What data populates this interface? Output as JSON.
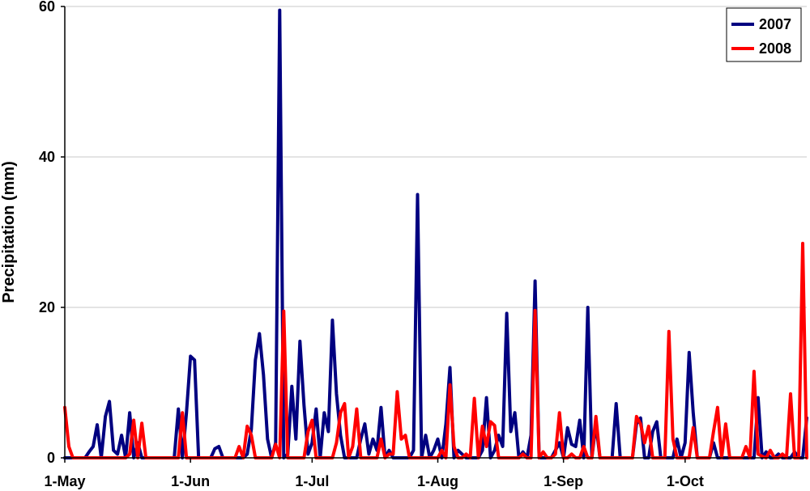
{
  "chart_data": {
    "type": "line",
    "title": "",
    "xlabel": "",
    "ylabel": "Precipitation (mm)",
    "ylim": [
      0,
      60
    ],
    "yticks": [
      0,
      20,
      40,
      60
    ],
    "xlim": [
      "2007-05-01",
      "2007-10-31"
    ],
    "xticks": [
      {
        "date": "2007-05-01",
        "label": "1-May"
      },
      {
        "date": "2007-06-01",
        "label": "1-Jun"
      },
      {
        "date": "2007-07-01",
        "label": "1-Jul"
      },
      {
        "date": "2007-08-01",
        "label": "1-Aug"
      },
      {
        "date": "2007-09-01",
        "label": "1-Sep"
      },
      {
        "date": "2007-10-01",
        "label": "1-Oct"
      }
    ],
    "grid": "horizontal",
    "legend": "top-right",
    "series": [
      {
        "name": "2007",
        "color": "#000080",
        "points": [
          [
            "2007-05-01",
            0
          ],
          [
            "2007-05-06",
            0
          ],
          [
            "2007-05-07",
            0.8
          ],
          [
            "2007-05-08",
            1.5
          ],
          [
            "2007-05-09",
            4.4
          ],
          [
            "2007-05-10",
            0
          ],
          [
            "2007-05-11",
            5.5
          ],
          [
            "2007-05-12",
            7.5
          ],
          [
            "2007-05-13",
            1
          ],
          [
            "2007-05-14",
            0.5
          ],
          [
            "2007-05-15",
            3
          ],
          [
            "2007-05-16",
            0
          ],
          [
            "2007-05-17",
            6
          ],
          [
            "2007-05-18",
            0
          ],
          [
            "2007-05-19",
            2
          ],
          [
            "2007-05-20",
            0
          ],
          [
            "2007-05-28",
            0
          ],
          [
            "2007-05-29",
            6.5
          ],
          [
            "2007-05-30",
            0
          ],
          [
            "2007-05-31",
            6
          ],
          [
            "2007-06-01",
            13.5
          ],
          [
            "2007-06-02",
            13
          ],
          [
            "2007-06-03",
            0
          ],
          [
            "2007-06-06",
            0
          ],
          [
            "2007-06-07",
            1.2
          ],
          [
            "2007-06-08",
            1.5
          ],
          [
            "2007-06-09",
            0
          ],
          [
            "2007-06-14",
            0
          ],
          [
            "2007-06-15",
            0.5
          ],
          [
            "2007-06-16",
            3.8
          ],
          [
            "2007-06-17",
            13
          ],
          [
            "2007-06-18",
            16.5
          ],
          [
            "2007-06-19",
            11
          ],
          [
            "2007-06-20",
            2.5
          ],
          [
            "2007-06-21",
            0
          ],
          [
            "2007-06-22",
            2
          ],
          [
            "2007-06-23",
            59.5
          ],
          [
            "2007-06-24",
            0
          ],
          [
            "2007-06-25",
            0.5
          ],
          [
            "2007-06-26",
            9.5
          ],
          [
            "2007-06-27",
            2.5
          ],
          [
            "2007-06-28",
            15.5
          ],
          [
            "2007-06-29",
            7
          ],
          [
            "2007-06-30",
            0.5
          ],
          [
            "2007-07-01",
            2
          ],
          [
            "2007-07-02",
            6.5
          ],
          [
            "2007-07-03",
            0
          ],
          [
            "2007-07-04",
            6
          ],
          [
            "2007-07-05",
            3.5
          ],
          [
            "2007-07-06",
            18.3
          ],
          [
            "2007-07-07",
            8.5
          ],
          [
            "2007-07-08",
            3
          ],
          [
            "2007-07-09",
            0
          ],
          [
            "2007-07-12",
            0
          ],
          [
            "2007-07-13",
            2.5
          ],
          [
            "2007-07-14",
            4.5
          ],
          [
            "2007-07-15",
            0.5
          ],
          [
            "2007-07-16",
            2.5
          ],
          [
            "2007-07-17",
            1
          ],
          [
            "2007-07-18",
            6.7
          ],
          [
            "2007-07-19",
            0
          ],
          [
            "2007-07-20",
            1
          ],
          [
            "2007-07-21",
            0
          ],
          [
            "2007-07-25",
            0
          ],
          [
            "2007-07-26",
            1
          ],
          [
            "2007-07-27",
            35
          ],
          [
            "2007-07-28",
            0
          ],
          [
            "2007-07-29",
            3
          ],
          [
            "2007-07-30",
            0
          ],
          [
            "2007-07-31",
            1
          ],
          [
            "2007-08-01",
            2.5
          ],
          [
            "2007-08-02",
            0
          ],
          [
            "2007-08-03",
            4.5
          ],
          [
            "2007-08-04",
            12
          ],
          [
            "2007-08-05",
            0
          ],
          [
            "2007-08-06",
            1
          ],
          [
            "2007-08-07",
            0.5
          ],
          [
            "2007-08-08",
            0
          ],
          [
            "2007-08-11",
            0
          ],
          [
            "2007-08-12",
            1
          ],
          [
            "2007-08-13",
            8
          ],
          [
            "2007-08-14",
            0
          ],
          [
            "2007-08-15",
            1
          ],
          [
            "2007-08-16",
            3
          ],
          [
            "2007-08-17",
            1.5
          ],
          [
            "2007-08-18",
            19.2
          ],
          [
            "2007-08-19",
            3.5
          ],
          [
            "2007-08-20",
            6
          ],
          [
            "2007-08-21",
            0
          ],
          [
            "2007-08-22",
            0.8
          ],
          [
            "2007-08-23",
            0
          ],
          [
            "2007-08-24",
            3
          ],
          [
            "2007-08-25",
            23.5
          ],
          [
            "2007-08-26",
            0
          ],
          [
            "2007-08-29",
            0
          ],
          [
            "2007-08-30",
            1
          ],
          [
            "2007-08-31",
            2
          ],
          [
            "2007-09-01",
            0
          ],
          [
            "2007-09-02",
            4
          ],
          [
            "2007-09-03",
            1.8
          ],
          [
            "2007-09-04",
            1.5
          ],
          [
            "2007-09-05",
            5
          ],
          [
            "2007-09-06",
            0
          ],
          [
            "2007-09-07",
            20
          ],
          [
            "2007-09-08",
            0
          ],
          [
            "2007-09-09",
            4.5
          ],
          [
            "2007-09-10",
            0
          ],
          [
            "2007-09-13",
            0
          ],
          [
            "2007-09-14",
            7.2
          ],
          [
            "2007-09-15",
            0
          ],
          [
            "2007-09-18",
            0
          ],
          [
            "2007-09-19",
            4.5
          ],
          [
            "2007-09-20",
            5.3
          ],
          [
            "2007-09-21",
            0
          ],
          [
            "2007-09-22",
            0
          ],
          [
            "2007-09-23",
            3.5
          ],
          [
            "2007-09-24",
            4.8
          ],
          [
            "2007-09-25",
            0
          ],
          [
            "2007-09-28",
            0
          ],
          [
            "2007-09-29",
            2.5
          ],
          [
            "2007-09-30",
            0
          ],
          [
            "2007-10-01",
            2
          ],
          [
            "2007-10-02",
            14
          ],
          [
            "2007-10-03",
            6
          ],
          [
            "2007-10-04",
            0
          ],
          [
            "2007-10-07",
            0
          ],
          [
            "2007-10-08",
            2
          ],
          [
            "2007-10-09",
            0
          ],
          [
            "2007-10-18",
            0
          ],
          [
            "2007-10-19",
            8
          ],
          [
            "2007-10-20",
            0
          ],
          [
            "2007-10-21",
            0.8
          ],
          [
            "2007-10-22",
            0
          ],
          [
            "2007-10-23",
            0
          ],
          [
            "2007-10-24",
            0.5
          ],
          [
            "2007-10-25",
            0
          ],
          [
            "2007-10-27",
            0
          ],
          [
            "2007-10-28",
            0.8
          ],
          [
            "2007-10-29",
            0
          ],
          [
            "2007-10-30",
            0
          ],
          [
            "2007-10-31",
            5.3
          ]
        ]
      },
      {
        "name": "2008",
        "color": "#ff0000",
        "points": [
          [
            "2007-05-01",
            6.7
          ],
          [
            "2007-05-02",
            1.5
          ],
          [
            "2007-05-03",
            0
          ],
          [
            "2007-05-16",
            0
          ],
          [
            "2007-05-17",
            0.5
          ],
          [
            "2007-05-18",
            5
          ],
          [
            "2007-05-19",
            0
          ],
          [
            "2007-05-20",
            4.6
          ],
          [
            "2007-05-21",
            0
          ],
          [
            "2007-05-29",
            0
          ],
          [
            "2007-05-30",
            6
          ],
          [
            "2007-05-31",
            0
          ],
          [
            "2007-06-12",
            0
          ],
          [
            "2007-06-13",
            1.5
          ],
          [
            "2007-06-14",
            0
          ],
          [
            "2007-06-15",
            4.2
          ],
          [
            "2007-06-16",
            3
          ],
          [
            "2007-06-17",
            0
          ],
          [
            "2007-06-21",
            0
          ],
          [
            "2007-06-22",
            1.8
          ],
          [
            "2007-06-23",
            0
          ],
          [
            "2007-06-24",
            19.5
          ],
          [
            "2007-06-25",
            0
          ],
          [
            "2007-06-29",
            0
          ],
          [
            "2007-06-30",
            3.5
          ],
          [
            "2007-07-01",
            5
          ],
          [
            "2007-07-02",
            0
          ],
          [
            "2007-07-05",
            0
          ],
          [
            "2007-07-06",
            0
          ],
          [
            "2007-07-07",
            2
          ],
          [
            "2007-07-08",
            6
          ],
          [
            "2007-07-09",
            7.2
          ],
          [
            "2007-07-10",
            0
          ],
          [
            "2007-07-11",
            1.5
          ],
          [
            "2007-07-12",
            6.5
          ],
          [
            "2007-07-13",
            0
          ],
          [
            "2007-07-17",
            0
          ],
          [
            "2007-07-18",
            2.5
          ],
          [
            "2007-07-19",
            0
          ],
          [
            "2007-07-20",
            0.5
          ],
          [
            "2007-07-21",
            0.5
          ],
          [
            "2007-07-22",
            8.8
          ],
          [
            "2007-07-23",
            2.5
          ],
          [
            "2007-07-24",
            3
          ],
          [
            "2007-07-25",
            0
          ],
          [
            "2007-08-01",
            0
          ],
          [
            "2007-08-02",
            1
          ],
          [
            "2007-08-03",
            0
          ],
          [
            "2007-08-04",
            9.7
          ],
          [
            "2007-08-05",
            1.5
          ],
          [
            "2007-08-06",
            0
          ],
          [
            "2007-08-07",
            0
          ],
          [
            "2007-08-08",
            0.5
          ],
          [
            "2007-08-09",
            0
          ],
          [
            "2007-08-10",
            7.9
          ],
          [
            "2007-08-11",
            0
          ],
          [
            "2007-08-12",
            4.2
          ],
          [
            "2007-08-13",
            1.5
          ],
          [
            "2007-08-14",
            4.8
          ],
          [
            "2007-08-15",
            4.3
          ],
          [
            "2007-08-16",
            0
          ],
          [
            "2007-08-21",
            0
          ],
          [
            "2007-08-22",
            0.5
          ],
          [
            "2007-08-23",
            0
          ],
          [
            "2007-08-24",
            0
          ],
          [
            "2007-08-25",
            19.6
          ],
          [
            "2007-08-26",
            0
          ],
          [
            "2007-08-27",
            0.8
          ],
          [
            "2007-08-28",
            0
          ],
          [
            "2007-08-29",
            0
          ],
          [
            "2007-08-30",
            0.5
          ],
          [
            "2007-08-31",
            6
          ],
          [
            "2007-09-01",
            0
          ],
          [
            "2007-09-02",
            0
          ],
          [
            "2007-09-03",
            0.5
          ],
          [
            "2007-09-04",
            0
          ],
          [
            "2007-09-05",
            0
          ],
          [
            "2007-09-06",
            1.5
          ],
          [
            "2007-09-07",
            0
          ],
          [
            "2007-09-08",
            0
          ],
          [
            "2007-09-09",
            5.5
          ],
          [
            "2007-09-10",
            0
          ],
          [
            "2007-09-16",
            0
          ],
          [
            "2007-09-17",
            0
          ],
          [
            "2007-09-18",
            0
          ],
          [
            "2007-09-19",
            5.5
          ],
          [
            "2007-09-20",
            4.5
          ],
          [
            "2007-09-21",
            2
          ],
          [
            "2007-09-22",
            4.2
          ],
          [
            "2007-09-23",
            0
          ],
          [
            "2007-09-25",
            0
          ],
          [
            "2007-09-26",
            0
          ],
          [
            "2007-09-27",
            16.8
          ],
          [
            "2007-09-28",
            2.5
          ],
          [
            "2007-09-29",
            0
          ],
          [
            "2007-10-02",
            0
          ],
          [
            "2007-10-03",
            4
          ],
          [
            "2007-10-04",
            0
          ],
          [
            "2007-10-07",
            0
          ],
          [
            "2007-10-08",
            3.5
          ],
          [
            "2007-10-09",
            6.7
          ],
          [
            "2007-10-10",
            0
          ],
          [
            "2007-10-11",
            4.5
          ],
          [
            "2007-10-12",
            0
          ],
          [
            "2007-10-15",
            0
          ],
          [
            "2007-10-16",
            1.5
          ],
          [
            "2007-10-17",
            0
          ],
          [
            "2007-10-18",
            11.5
          ],
          [
            "2007-10-19",
            0.5
          ],
          [
            "2007-10-20",
            0.2
          ],
          [
            "2007-10-21",
            0
          ],
          [
            "2007-10-22",
            1
          ],
          [
            "2007-10-23",
            0
          ],
          [
            "2007-10-24",
            0
          ],
          [
            "2007-10-25",
            0.5
          ],
          [
            "2007-10-26",
            0
          ],
          [
            "2007-10-27",
            8.5
          ],
          [
            "2007-10-28",
            0
          ],
          [
            "2007-10-29",
            0
          ],
          [
            "2007-10-30",
            28.5
          ],
          [
            "2007-10-31",
            0
          ]
        ]
      }
    ]
  }
}
